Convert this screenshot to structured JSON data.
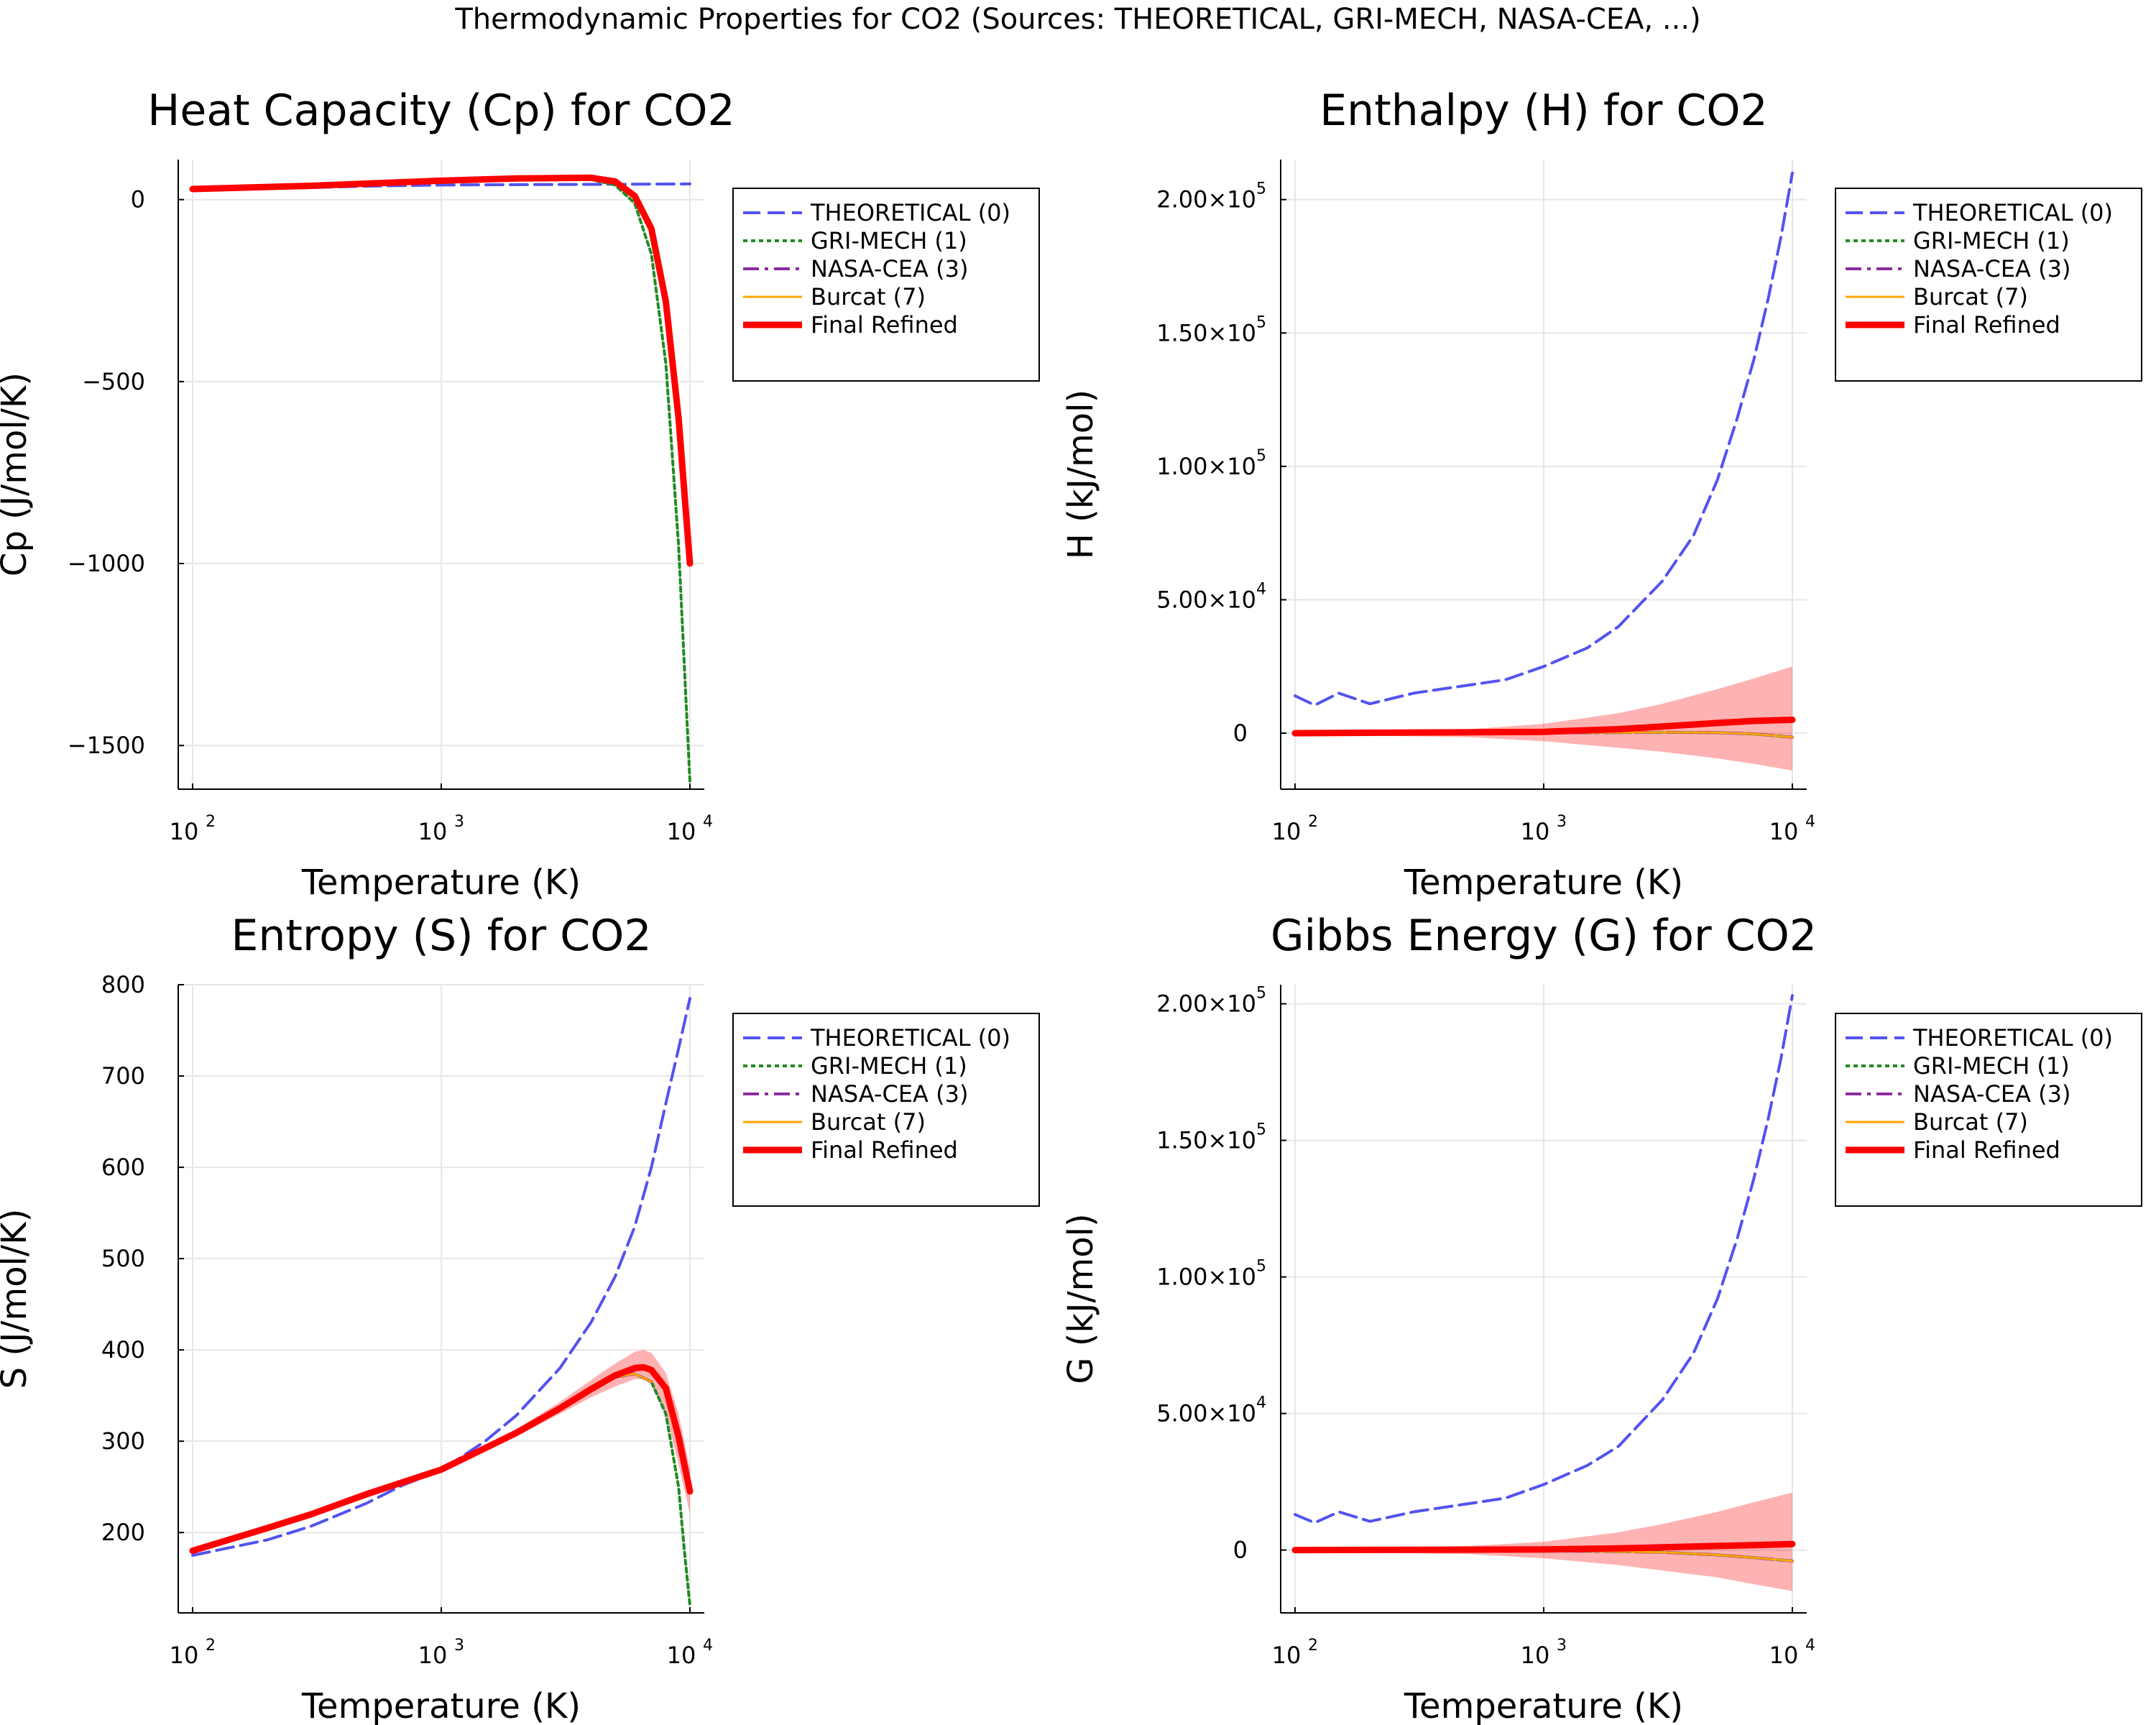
{
  "figure": {
    "suptitle": "Thermodynamic Properties for CO2 (Sources: THEORETICAL, GRI-MECH, NASA-CEA, ...)"
  },
  "legend_entries": [
    {
      "label": "THEORETICAL (0)",
      "color": "#4040ee",
      "style": "dash"
    },
    {
      "label": "GRI-MECH (1)",
      "color": "#228b22",
      "style": "dot"
    },
    {
      "label": "NASA-CEA (3)",
      "color": "#8b2d9e",
      "style": "dashdot"
    },
    {
      "label": "Burcat (7)",
      "color": "#ffa500",
      "style": "solid"
    },
    {
      "label": "Final Refined",
      "color": "#ff0000",
      "style": "bold"
    }
  ],
  "chart_data": [
    {
      "type": "line",
      "title": "Heat Capacity (Cp) for CO2",
      "xlabel": "Temperature (K)",
      "ylabel": "Cp (J/mol/K)",
      "xscale": "log",
      "xlim": [
        100,
        10000
      ],
      "ylim": [
        -1620,
        110
      ],
      "xticks": [
        {
          "v": 100,
          "base": "10",
          "exp": "2"
        },
        {
          "v": 1000,
          "base": "10",
          "exp": "3"
        },
        {
          "v": 10000,
          "base": "10",
          "exp": "4"
        }
      ],
      "yticks": [
        {
          "v": 0,
          "text": "0"
        },
        {
          "v": -500,
          "text": "−500"
        },
        {
          "v": -1000,
          "text": "−1000"
        },
        {
          "v": -1500,
          "text": "−1500"
        }
      ],
      "grid": true,
      "legend_position": "outside-right-top",
      "series": [
        {
          "name": "THEORETICAL (0)",
          "x": [
            100,
            300,
            500,
            1000,
            2000,
            5000,
            10000
          ],
          "y": [
            28,
            33,
            37,
            40,
            41,
            42,
            43
          ]
        },
        {
          "name": "GRI-MECH (1)",
          "x": [
            100,
            300,
            1000,
            2000,
            4000,
            5000,
            6000,
            7000,
            8000,
            9000,
            10000
          ],
          "y": [
            29,
            38,
            52,
            58,
            55,
            40,
            -10,
            -150,
            -450,
            -950,
            -1600
          ]
        },
        {
          "name": "NASA-CEA (3)",
          "x": [
            100,
            1000,
            4000
          ],
          "y": [
            29,
            52,
            55
          ]
        },
        {
          "name": "Burcat (7)",
          "x": [
            100,
            1000,
            4000
          ],
          "y": [
            29,
            52,
            55
          ]
        },
        {
          "name": "Final Refined",
          "x": [
            100,
            300,
            1000,
            2000,
            4000,
            5000,
            6000,
            7000,
            8000,
            9000,
            10000
          ],
          "y": [
            29,
            38,
            52,
            58,
            60,
            50,
            10,
            -80,
            -280,
            -600,
            -1000
          ]
        }
      ]
    },
    {
      "type": "line",
      "title": "Enthalpy (H) for CO2",
      "xlabel": "Temperature (K)",
      "ylabel": "H (kJ/mol)",
      "xscale": "log",
      "xlim": [
        100,
        10000
      ],
      "ylim": [
        -21000,
        215000
      ],
      "xticks": [
        {
          "v": 100,
          "base": "10",
          "exp": "2"
        },
        {
          "v": 1000,
          "base": "10",
          "exp": "3"
        },
        {
          "v": 10000,
          "base": "10",
          "exp": "4"
        }
      ],
      "yticks": [
        {
          "v": 0,
          "text": "0"
        },
        {
          "v": 50000,
          "mant": "5.00×10",
          "exp": "4"
        },
        {
          "v": 100000,
          "mant": "1.00×10",
          "exp": "5"
        },
        {
          "v": 150000,
          "mant": "1.50×10",
          "exp": "5"
        },
        {
          "v": 200000,
          "mant": "2.00×10",
          "exp": "5"
        }
      ],
      "grid": true,
      "legend_position": "outside-right-top",
      "band": {
        "x": [
          100,
          500,
          1000,
          2000,
          3000,
          5000,
          7000,
          10000
        ],
        "upper": [
          500,
          1500,
          3500,
          7500,
          11000,
          16500,
          20500,
          25000
        ],
        "lower": [
          -500,
          -1500,
          -3000,
          -5500,
          -7000,
          -9500,
          -11500,
          -14000
        ]
      },
      "series": [
        {
          "name": "THEORETICAL (0)",
          "x": [
            100,
            120,
            150,
            200,
            300,
            500,
            700,
            1000,
            1500,
            2000,
            3000,
            4000,
            5000,
            6000,
            7000,
            8000,
            9000,
            10000
          ],
          "y": [
            14000,
            10500,
            15000,
            11000,
            15000,
            18000,
            20000,
            25000,
            32000,
            40000,
            57000,
            74000,
            95000,
            118000,
            140000,
            163000,
            186000,
            210000
          ]
        },
        {
          "name": "GRI-MECH (1)",
          "x": [
            100,
            1000,
            3000,
            5000,
            7000,
            10000
          ],
          "y": [
            0,
            100,
            300,
            200,
            -300,
            -1500
          ]
        },
        {
          "name": "NASA-CEA (3)",
          "x": [
            100,
            1000,
            3000,
            5000,
            7000,
            10000
          ],
          "y": [
            0,
            100,
            300,
            200,
            -300,
            -1500
          ]
        },
        {
          "name": "Burcat (7)",
          "x": [
            100,
            1000,
            3000,
            5000,
            7000,
            10000
          ],
          "y": [
            0,
            100,
            300,
            200,
            -300,
            -1500
          ]
        },
        {
          "name": "Final Refined",
          "x": [
            100,
            1000,
            2000,
            3000,
            5000,
            7000,
            10000
          ],
          "y": [
            0,
            500,
            1500,
            2500,
            3800,
            4600,
            5000
          ]
        }
      ]
    },
    {
      "type": "line",
      "title": "Entropy (S) for CO2",
      "xlabel": "Temperature (K)",
      "ylabel": "S (J/mol/K)",
      "xscale": "log",
      "xlim": [
        100,
        10000
      ],
      "ylim": [
        112,
        800
      ],
      "xticks": [
        {
          "v": 100,
          "base": "10",
          "exp": "2"
        },
        {
          "v": 1000,
          "base": "10",
          "exp": "3"
        },
        {
          "v": 10000,
          "base": "10",
          "exp": "4"
        }
      ],
      "yticks": [
        {
          "v": 200,
          "text": "200"
        },
        {
          "v": 300,
          "text": "300"
        },
        {
          "v": 400,
          "text": "400"
        },
        {
          "v": 500,
          "text": "500"
        },
        {
          "v": 600,
          "text": "600"
        },
        {
          "v": 700,
          "text": "700"
        },
        {
          "v": 800,
          "text": "800"
        }
      ],
      "grid": true,
      "legend_position": "outside-right-top",
      "band": {
        "x": [
          100,
          300,
          1000,
          2000,
          3000,
          4000,
          5000,
          6000,
          6500,
          7000,
          8000,
          9000,
          10000
        ],
        "upper": [
          183,
          223,
          272,
          313,
          343,
          367,
          385,
          398,
          400,
          397,
          375,
          330,
          270
        ]
      },
      "band_lower": [
        177,
        217,
        266,
        305,
        330,
        348,
        360,
        368,
        368,
        362,
        330,
        275,
        220
      ],
      "series": [
        {
          "name": "THEORETICAL (0)",
          "x": [
            100,
            200,
            300,
            500,
            700,
            1000,
            1500,
            2000,
            3000,
            4000,
            5000,
            6000,
            7000,
            8000,
            9000,
            10000
          ],
          "y": [
            175,
            192,
            207,
            232,
            252,
            268,
            300,
            328,
            380,
            430,
            480,
            535,
            600,
            670,
            730,
            785
          ]
        },
        {
          "name": "GRI-MECH (1)",
          "x": [
            100,
            300,
            1000,
            2000,
            3000,
            4000,
            5000,
            6000,
            7000,
            8000,
            9000,
            9500,
            10000
          ],
          "y": [
            180,
            220,
            269,
            309,
            336,
            357,
            370,
            374,
            365,
            330,
            250,
            180,
            120
          ]
        },
        {
          "name": "NASA-CEA (3)",
          "x": [
            100,
            300,
            1000,
            2000,
            3000,
            4000,
            5000,
            6000,
            7000
          ],
          "y": [
            180,
            220,
            269,
            309,
            336,
            357,
            370,
            374,
            365
          ]
        },
        {
          "name": "Burcat (7)",
          "x": [
            100,
            300,
            1000,
            2000,
            3000,
            4000,
            5000,
            6000,
            7000
          ],
          "y": [
            180,
            220,
            269,
            309,
            336,
            357,
            370,
            374,
            365
          ]
        },
        {
          "name": "Final Refined",
          "x": [
            100,
            200,
            300,
            500,
            1000,
            2000,
            3000,
            4000,
            5000,
            6000,
            6500,
            7000,
            8000,
            9000,
            10000
          ],
          "y": [
            180,
            205,
            220,
            242,
            269,
            309,
            336,
            357,
            372,
            380,
            381,
            378,
            358,
            305,
            245
          ]
        }
      ]
    },
    {
      "type": "line",
      "title": "Gibbs Energy (G) for CO2",
      "xlabel": "Temperature (K)",
      "ylabel": "G (kJ/mol)",
      "xscale": "log",
      "xlim": [
        100,
        10000
      ],
      "ylim": [
        -23000,
        207000
      ],
      "xticks": [
        {
          "v": 100,
          "base": "10",
          "exp": "2"
        },
        {
          "v": 1000,
          "base": "10",
          "exp": "3"
        },
        {
          "v": 10000,
          "base": "10",
          "exp": "4"
        }
      ],
      "yticks": [
        {
          "v": 0,
          "text": "0"
        },
        {
          "v": 50000,
          "mant": "5.00×10",
          "exp": "4"
        },
        {
          "v": 100000,
          "mant": "1.00×10",
          "exp": "5"
        },
        {
          "v": 150000,
          "mant": "1.50×10",
          "exp": "5"
        },
        {
          "v": 200000,
          "mant": "2.00×10",
          "exp": "5"
        }
      ],
      "grid": true,
      "legend_position": "outside-right-top",
      "band": {
        "x": [
          100,
          500,
          1000,
          2000,
          3000,
          5000,
          7000,
          10000
        ],
        "upper": [
          500,
          1500,
          3000,
          6500,
          9500,
          14000,
          17500,
          21000
        ],
        "lower": [
          -500,
          -1500,
          -3000,
          -5500,
          -7500,
          -10000,
          -12500,
          -15000
        ]
      },
      "series": [
        {
          "name": "THEORETICAL (0)",
          "x": [
            100,
            120,
            150,
            200,
            300,
            500,
            700,
            1000,
            1500,
            2000,
            3000,
            4000,
            5000,
            6000,
            7000,
            8000,
            9000,
            10000
          ],
          "y": [
            13000,
            10000,
            14000,
            10500,
            14000,
            17000,
            19000,
            24000,
            31000,
            38000,
            55000,
            72000,
            92000,
            114000,
            136000,
            158000,
            180000,
            203000
          ]
        },
        {
          "name": "GRI-MECH (1)",
          "x": [
            100,
            1000,
            3000,
            5000,
            7000,
            10000
          ],
          "y": [
            0,
            -200,
            -800,
            -1800,
            -2800,
            -4000
          ]
        },
        {
          "name": "NASA-CEA (3)",
          "x": [
            100,
            1000,
            3000,
            5000,
            7000,
            10000
          ],
          "y": [
            0,
            -200,
            -800,
            -1800,
            -2800,
            -4000
          ]
        },
        {
          "name": "Burcat (7)",
          "x": [
            100,
            1000,
            3000,
            5000,
            7000,
            10000
          ],
          "y": [
            0,
            -200,
            -800,
            -1800,
            -2800,
            -4000
          ]
        },
        {
          "name": "Final Refined",
          "x": [
            100,
            1000,
            2000,
            3000,
            5000,
            7000,
            10000
          ],
          "y": [
            0,
            200,
            600,
            1000,
            1500,
            1800,
            2200
          ]
        }
      ]
    }
  ]
}
